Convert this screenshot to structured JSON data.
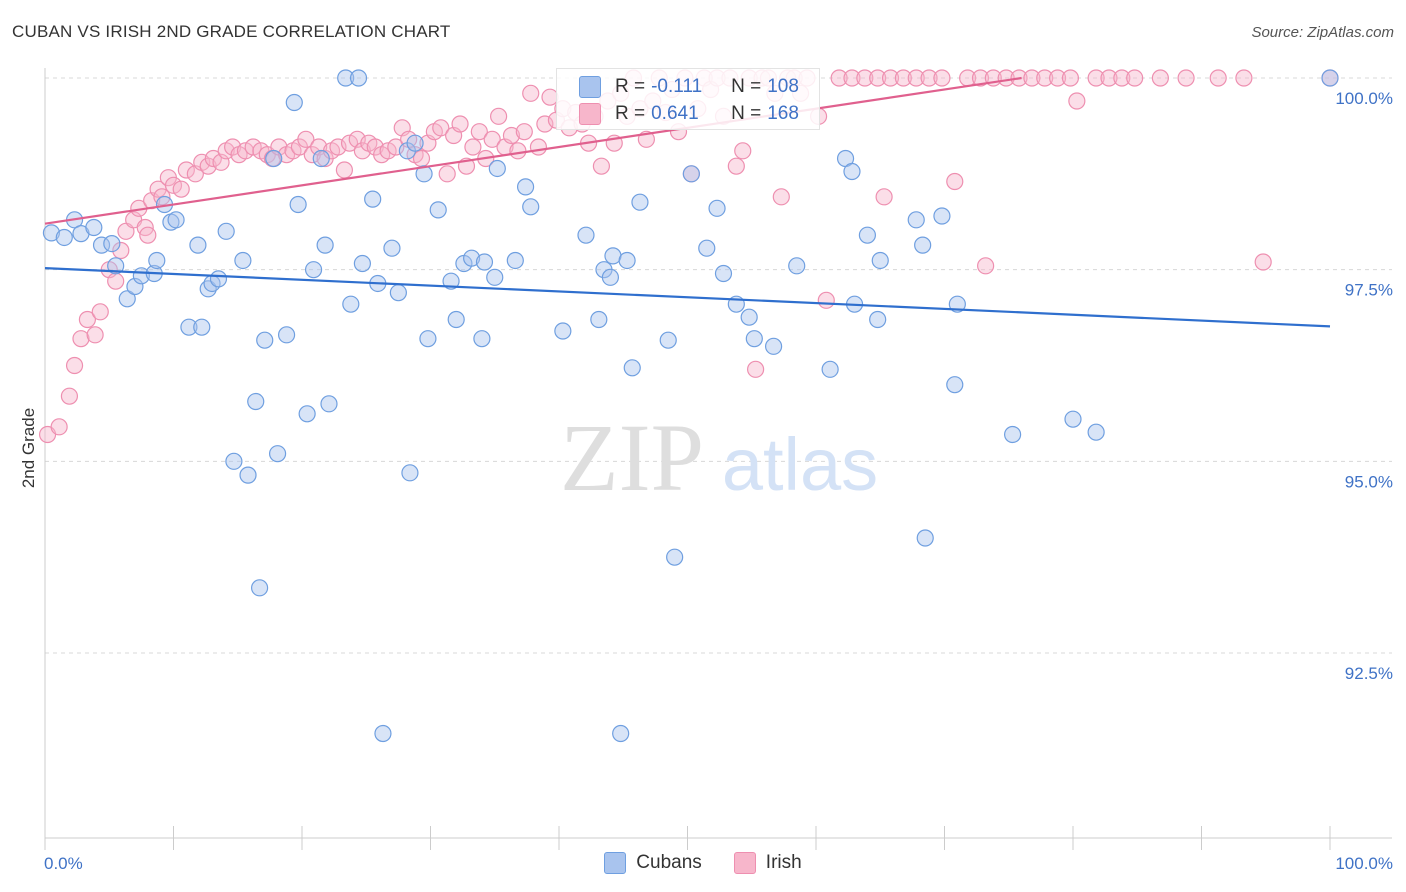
{
  "header": {
    "title": "CUBAN VS IRISH 2ND GRADE CORRELATION CHART",
    "source": "Source: ZipAtlas.com"
  },
  "watermark": {
    "left": "ZIP",
    "right": "atlas"
  },
  "legend": {
    "rows": [
      {
        "r_label": "R =",
        "r_value": "-0.111",
        "n_label": "N =",
        "n_value": "108"
      },
      {
        "r_label": "R =",
        "r_value": "0.641",
        "n_label": "N =",
        "n_value": "168"
      }
    ]
  },
  "colors": {
    "cubans_fill": "#a9c4ee",
    "cubans_stroke": "#6f9fe0",
    "cubans_line": "#2f6fce",
    "irish_fill": "#f7b6cb",
    "irish_stroke": "#ee8fb0",
    "irish_line": "#e0608e",
    "axis_label": "#3f72c6"
  },
  "chart_data": {
    "type": "scatter",
    "title": "CUBAN VS IRISH 2ND GRADE CORRELATION CHART",
    "ylabel": "2nd Grade",
    "xlabel": "",
    "xlim": [
      0,
      100
    ],
    "ylim": [
      90.5,
      100.2
    ],
    "x_tick_labels": [
      "0.0%",
      "100.0%"
    ],
    "y_ticks": [
      92.5,
      95.0,
      97.5,
      100.0
    ],
    "y_tick_labels": [
      "92.5%",
      "95.0%",
      "97.5%",
      "100.0%"
    ],
    "grid": true,
    "legend_placement": "top-center",
    "series": [
      {
        "name": "Cubans",
        "r": -0.111,
        "n": 108,
        "trend": {
          "x": [
            0,
            100
          ],
          "y": [
            97.52,
            96.76
          ]
        },
        "points": [
          [
            0.5,
            97.98
          ],
          [
            1.5,
            97.92
          ],
          [
            2.3,
            98.15
          ],
          [
            2.8,
            97.97
          ],
          [
            3.8,
            98.05
          ],
          [
            4.4,
            97.82
          ],
          [
            5.2,
            97.84
          ],
          [
            5.5,
            97.55
          ],
          [
            6.4,
            97.12
          ],
          [
            7.0,
            97.28
          ],
          [
            7.5,
            97.42
          ],
          [
            8.5,
            97.45
          ],
          [
            8.7,
            97.62
          ],
          [
            9.3,
            98.35
          ],
          [
            9.8,
            98.12
          ],
          [
            10.2,
            98.15
          ],
          [
            11.2,
            96.75
          ],
          [
            11.9,
            97.82
          ],
          [
            12.2,
            96.75
          ],
          [
            12.7,
            97.25
          ],
          [
            13.0,
            97.32
          ],
          [
            13.5,
            97.38
          ],
          [
            14.1,
            98.0
          ],
          [
            14.7,
            95.0
          ],
          [
            15.4,
            97.62
          ],
          [
            15.8,
            94.82
          ],
          [
            16.4,
            95.78
          ],
          [
            16.7,
            93.35
          ],
          [
            17.1,
            96.58
          ],
          [
            17.8,
            98.95
          ],
          [
            18.1,
            95.1
          ],
          [
            18.8,
            96.65
          ],
          [
            19.4,
            99.68
          ],
          [
            19.7,
            98.35
          ],
          [
            20.4,
            95.62
          ],
          [
            20.9,
            97.5
          ],
          [
            21.5,
            98.95
          ],
          [
            21.8,
            97.82
          ],
          [
            22.1,
            95.75
          ],
          [
            23.4,
            100.0
          ],
          [
            23.8,
            97.05
          ],
          [
            24.4,
            100.0
          ],
          [
            24.7,
            97.58
          ],
          [
            25.5,
            98.42
          ],
          [
            25.9,
            97.32
          ],
          [
            26.3,
            91.45
          ],
          [
            27.0,
            97.78
          ],
          [
            27.5,
            97.2
          ],
          [
            28.2,
            99.05
          ],
          [
            28.4,
            94.85
          ],
          [
            28.8,
            99.15
          ],
          [
            29.5,
            98.75
          ],
          [
            29.8,
            96.6
          ],
          [
            30.6,
            98.28
          ],
          [
            31.6,
            97.35
          ],
          [
            32.0,
            96.85
          ],
          [
            32.6,
            97.58
          ],
          [
            33.2,
            97.65
          ],
          [
            34.0,
            96.6
          ],
          [
            34.2,
            97.6
          ],
          [
            35.0,
            97.4
          ],
          [
            35.2,
            98.82
          ],
          [
            36.6,
            97.62
          ],
          [
            37.4,
            98.58
          ],
          [
            37.8,
            98.32
          ],
          [
            40.3,
            96.7
          ],
          [
            42.1,
            97.95
          ],
          [
            43.1,
            96.85
          ],
          [
            43.5,
            97.5
          ],
          [
            44.0,
            97.4
          ],
          [
            44.2,
            97.68
          ],
          [
            44.8,
            91.45
          ],
          [
            45.3,
            97.62
          ],
          [
            45.7,
            96.22
          ],
          [
            46.3,
            98.38
          ],
          [
            48.5,
            96.58
          ],
          [
            49.0,
            93.75
          ],
          [
            50.3,
            98.75
          ],
          [
            51.5,
            97.78
          ],
          [
            52.3,
            98.3
          ],
          [
            52.8,
            97.45
          ],
          [
            53.8,
            97.05
          ],
          [
            54.8,
            96.88
          ],
          [
            55.2,
            96.6
          ],
          [
            56.7,
            96.5
          ],
          [
            58.5,
            97.55
          ],
          [
            61.1,
            96.2
          ],
          [
            62.3,
            98.95
          ],
          [
            62.8,
            98.78
          ],
          [
            63.0,
            97.05
          ],
          [
            64.0,
            97.95
          ],
          [
            64.8,
            96.85
          ],
          [
            65.0,
            97.62
          ],
          [
            67.8,
            98.15
          ],
          [
            68.3,
            97.82
          ],
          [
            68.5,
            94.0
          ],
          [
            69.8,
            98.2
          ],
          [
            70.8,
            96.0
          ],
          [
            71.0,
            97.05
          ],
          [
            75.3,
            95.35
          ],
          [
            80.0,
            95.55
          ],
          [
            81.8,
            95.38
          ],
          [
            100.0,
            100.0
          ]
        ]
      },
      {
        "name": "Irish",
        "r": 0.641,
        "n": 168,
        "trend": {
          "x": [
            0,
            76
          ],
          "y": [
            98.1,
            100.0
          ]
        },
        "points": [
          [
            0.2,
            95.35
          ],
          [
            1.1,
            95.45
          ],
          [
            1.9,
            95.85
          ],
          [
            2.3,
            96.25
          ],
          [
            2.8,
            96.6
          ],
          [
            3.3,
            96.85
          ],
          [
            3.9,
            96.65
          ],
          [
            4.3,
            96.95
          ],
          [
            5.0,
            97.5
          ],
          [
            5.5,
            97.35
          ],
          [
            5.9,
            97.75
          ],
          [
            6.3,
            98.0
          ],
          [
            6.9,
            98.15
          ],
          [
            7.3,
            98.3
          ],
          [
            7.8,
            98.05
          ],
          [
            8.0,
            97.95
          ],
          [
            8.3,
            98.4
          ],
          [
            8.8,
            98.55
          ],
          [
            9.1,
            98.45
          ],
          [
            9.6,
            98.7
          ],
          [
            10.0,
            98.6
          ],
          [
            10.6,
            98.55
          ],
          [
            11.0,
            98.8
          ],
          [
            11.7,
            98.75
          ],
          [
            12.2,
            98.9
          ],
          [
            12.7,
            98.85
          ],
          [
            13.1,
            98.95
          ],
          [
            13.7,
            98.9
          ],
          [
            14.1,
            99.05
          ],
          [
            14.6,
            99.1
          ],
          [
            15.1,
            99.0
          ],
          [
            15.6,
            99.05
          ],
          [
            16.2,
            99.1
          ],
          [
            16.8,
            99.05
          ],
          [
            17.3,
            99.0
          ],
          [
            17.7,
            98.95
          ],
          [
            18.2,
            99.1
          ],
          [
            18.8,
            99.0
          ],
          [
            19.3,
            99.05
          ],
          [
            19.8,
            99.1
          ],
          [
            20.3,
            99.2
          ],
          [
            20.8,
            99.0
          ],
          [
            21.3,
            99.1
          ],
          [
            21.8,
            98.95
          ],
          [
            22.3,
            99.05
          ],
          [
            22.8,
            99.1
          ],
          [
            23.3,
            98.8
          ],
          [
            23.7,
            99.15
          ],
          [
            24.3,
            99.2
          ],
          [
            24.7,
            99.05
          ],
          [
            25.2,
            99.15
          ],
          [
            25.7,
            99.1
          ],
          [
            26.2,
            99.0
          ],
          [
            26.7,
            99.05
          ],
          [
            27.3,
            99.1
          ],
          [
            27.8,
            99.35
          ],
          [
            28.3,
            99.2
          ],
          [
            28.8,
            99.0
          ],
          [
            29.3,
            98.95
          ],
          [
            29.8,
            99.15
          ],
          [
            30.3,
            99.3
          ],
          [
            30.8,
            99.35
          ],
          [
            31.3,
            98.75
          ],
          [
            31.8,
            99.25
          ],
          [
            32.3,
            99.4
          ],
          [
            32.8,
            98.85
          ],
          [
            33.3,
            99.1
          ],
          [
            33.8,
            99.3
          ],
          [
            34.3,
            98.95
          ],
          [
            34.8,
            99.2
          ],
          [
            35.3,
            99.5
          ],
          [
            35.8,
            99.1
          ],
          [
            36.3,
            99.25
          ],
          [
            36.8,
            99.05
          ],
          [
            37.3,
            99.3
          ],
          [
            37.8,
            99.8
          ],
          [
            38.4,
            99.1
          ],
          [
            38.9,
            99.4
          ],
          [
            39.3,
            99.75
          ],
          [
            39.8,
            99.45
          ],
          [
            40.3,
            99.6
          ],
          [
            40.8,
            99.35
          ],
          [
            41.3,
            99.55
          ],
          [
            41.8,
            99.4
          ],
          [
            42.3,
            99.15
          ],
          [
            42.8,
            99.5
          ],
          [
            43.3,
            98.85
          ],
          [
            43.8,
            99.7
          ],
          [
            44.3,
            99.15
          ],
          [
            44.8,
            99.8
          ],
          [
            45.3,
            99.5
          ],
          [
            45.8,
            100.0
          ],
          [
            46.3,
            99.6
          ],
          [
            46.8,
            99.2
          ],
          [
            47.3,
            99.7
          ],
          [
            47.8,
            100.0
          ],
          [
            48.3,
            99.55
          ],
          [
            48.8,
            99.85
          ],
          [
            49.3,
            99.3
          ],
          [
            49.8,
            100.0
          ],
          [
            50.3,
            98.75
          ],
          [
            50.8,
            99.6
          ],
          [
            51.3,
            100.0
          ],
          [
            51.8,
            99.85
          ],
          [
            52.3,
            100.0
          ],
          [
            52.8,
            99.5
          ],
          [
            53.3,
            100.0
          ],
          [
            53.8,
            98.85
          ],
          [
            54.3,
            99.05
          ],
          [
            54.8,
            100.0
          ],
          [
            55.3,
            96.2
          ],
          [
            55.8,
            100.0
          ],
          [
            56.3,
            100.0
          ],
          [
            56.8,
            99.8
          ],
          [
            57.3,
            98.45
          ],
          [
            57.8,
            100.0
          ],
          [
            58.3,
            100.0
          ],
          [
            58.8,
            99.8
          ],
          [
            59.3,
            100.0
          ],
          [
            60.2,
            99.5
          ],
          [
            60.8,
            97.1
          ],
          [
            61.8,
            100.0
          ],
          [
            62.8,
            100.0
          ],
          [
            63.8,
            100.0
          ],
          [
            64.8,
            100.0
          ],
          [
            65.3,
            98.45
          ],
          [
            65.8,
            100.0
          ],
          [
            66.8,
            100.0
          ],
          [
            67.8,
            100.0
          ],
          [
            68.8,
            100.0
          ],
          [
            69.8,
            100.0
          ],
          [
            70.8,
            98.65
          ],
          [
            71.8,
            100.0
          ],
          [
            72.8,
            100.0
          ],
          [
            73.2,
            97.55
          ],
          [
            73.8,
            100.0
          ],
          [
            74.8,
            100.0
          ],
          [
            75.8,
            100.0
          ],
          [
            76.8,
            100.0
          ],
          [
            77.8,
            100.0
          ],
          [
            78.8,
            100.0
          ],
          [
            79.8,
            100.0
          ],
          [
            80.3,
            99.7
          ],
          [
            81.8,
            100.0
          ],
          [
            82.8,
            100.0
          ],
          [
            83.8,
            100.0
          ],
          [
            84.8,
            100.0
          ],
          [
            86.8,
            100.0
          ],
          [
            88.8,
            100.0
          ],
          [
            91.3,
            100.0
          ],
          [
            93.3,
            100.0
          ],
          [
            94.8,
            97.6
          ],
          [
            100.0,
            100.0
          ]
        ]
      }
    ]
  }
}
